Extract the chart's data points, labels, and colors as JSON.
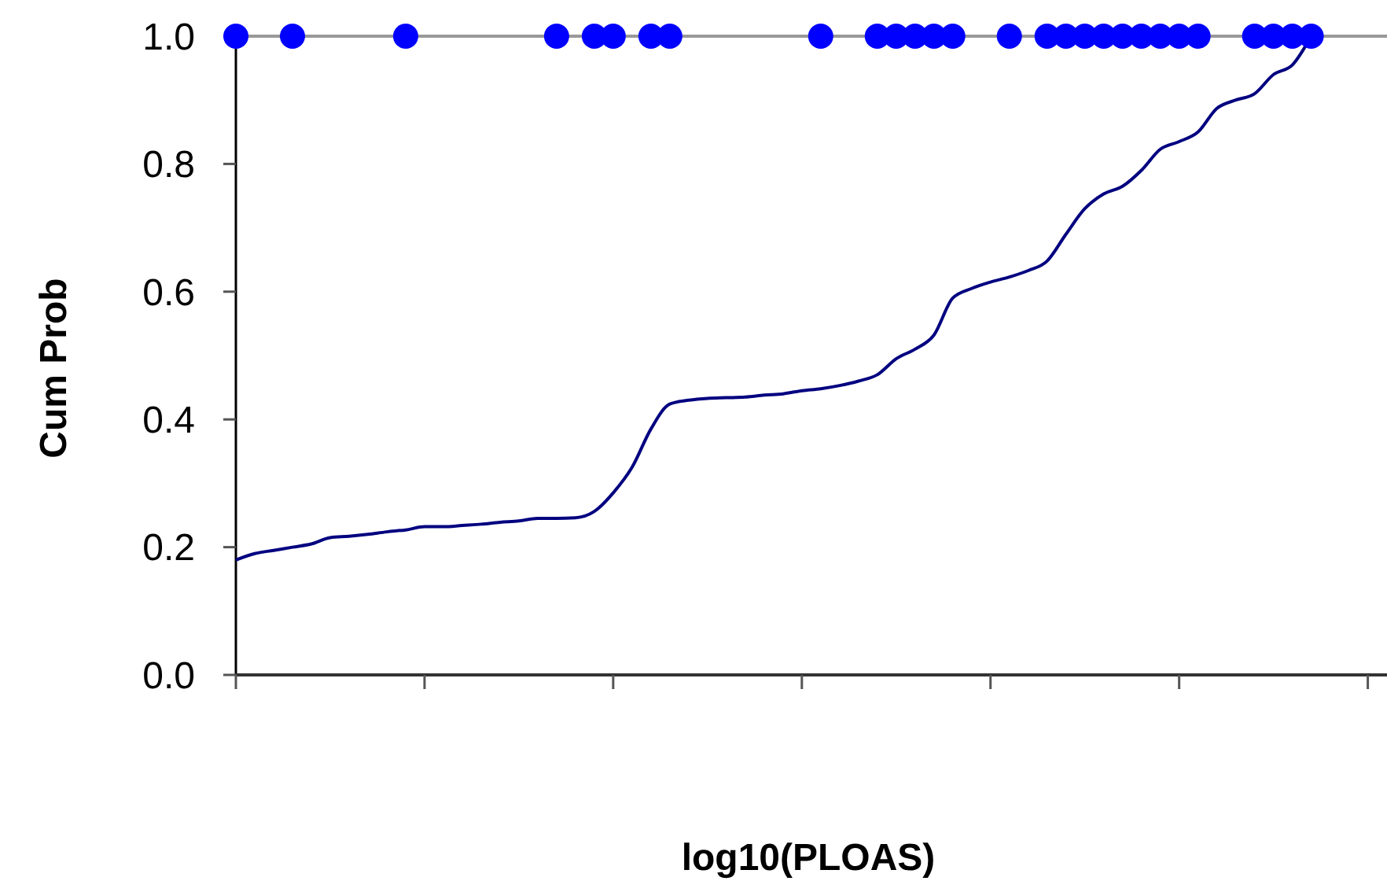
{
  "chart_data": {
    "type": "line",
    "xlabel": "log10(PLOAS)",
    "ylabel": "Cum Prob",
    "categories": [
      null,
      null,
      null,
      null,
      null,
      null,
      null,
      null,
      null,
      null,
      null,
      null,
      null,
      null,
      null,
      null,
      null,
      null,
      null,
      null,
      null,
      null,
      null,
      null,
      null,
      null,
      null,
      null,
      null,
      null,
      null,
      null,
      null,
      null,
      null,
      null,
      null,
      null,
      null,
      null,
      null,
      null,
      null,
      null,
      null,
      null,
      null,
      null,
      null,
      null,
      null,
      null,
      null,
      null,
      null,
      null,
      null,
      null,
      null,
      null,
      null
    ],
    "series": [
      {
        "color": "#000080",
        "values": [
          0.18,
          0.19,
          0.195,
          0.2,
          0.205,
          0.215,
          0.217,
          0.22,
          0.224,
          0.227,
          0.232,
          0.232,
          0.234,
          0.236,
          0.239,
          0.241,
          0.245,
          0.245,
          0.246,
          0.256,
          0.285,
          0.325,
          0.385,
          0.424,
          0.43,
          0.433,
          0.434,
          0.435,
          0.438,
          0.44,
          0.445,
          0.448,
          0.453,
          0.46,
          0.47,
          0.495,
          0.51,
          0.532,
          0.59,
          0.605,
          0.615,
          0.623,
          0.633,
          0.648,
          0.69,
          0.73,
          0.753,
          0.765,
          0.79,
          0.823,
          0.835,
          0.85,
          0.887,
          0.9,
          0.91,
          0.94,
          0.955,
          1.0,
          null,
          null,
          null
        ]
      },
      {
        "type": "scatter",
        "color": "#0000ff",
        "marker": "circle",
        "values": [
          1,
          null,
          null,
          1,
          null,
          null,
          null,
          null,
          null,
          1,
          null,
          null,
          null,
          null,
          null,
          null,
          null,
          1,
          null,
          1,
          1,
          null,
          1,
          1,
          null,
          null,
          null,
          null,
          null,
          null,
          null,
          1,
          null,
          null,
          1,
          1,
          1,
          1,
          1,
          null,
          null,
          1,
          null,
          1,
          1,
          1,
          1,
          1,
          1,
          1,
          1,
          1,
          null,
          null,
          1,
          1,
          1,
          1,
          null,
          null,
          null
        ]
      }
    ],
    "ylim": [
      0,
      1
    ],
    "yticks": [
      {
        "value": 0,
        "label": "0.0"
      },
      {
        "value": 0.2,
        "label": "0.2"
      },
      {
        "value": 0.4,
        "label": "0.4"
      },
      {
        "value": 0.6,
        "label": "0.6"
      },
      {
        "value": 0.8,
        "label": "0.8"
      },
      {
        "value": 1,
        "label": "1.0"
      }
    ],
    "grid": false,
    "tick_labels": "y"
  }
}
